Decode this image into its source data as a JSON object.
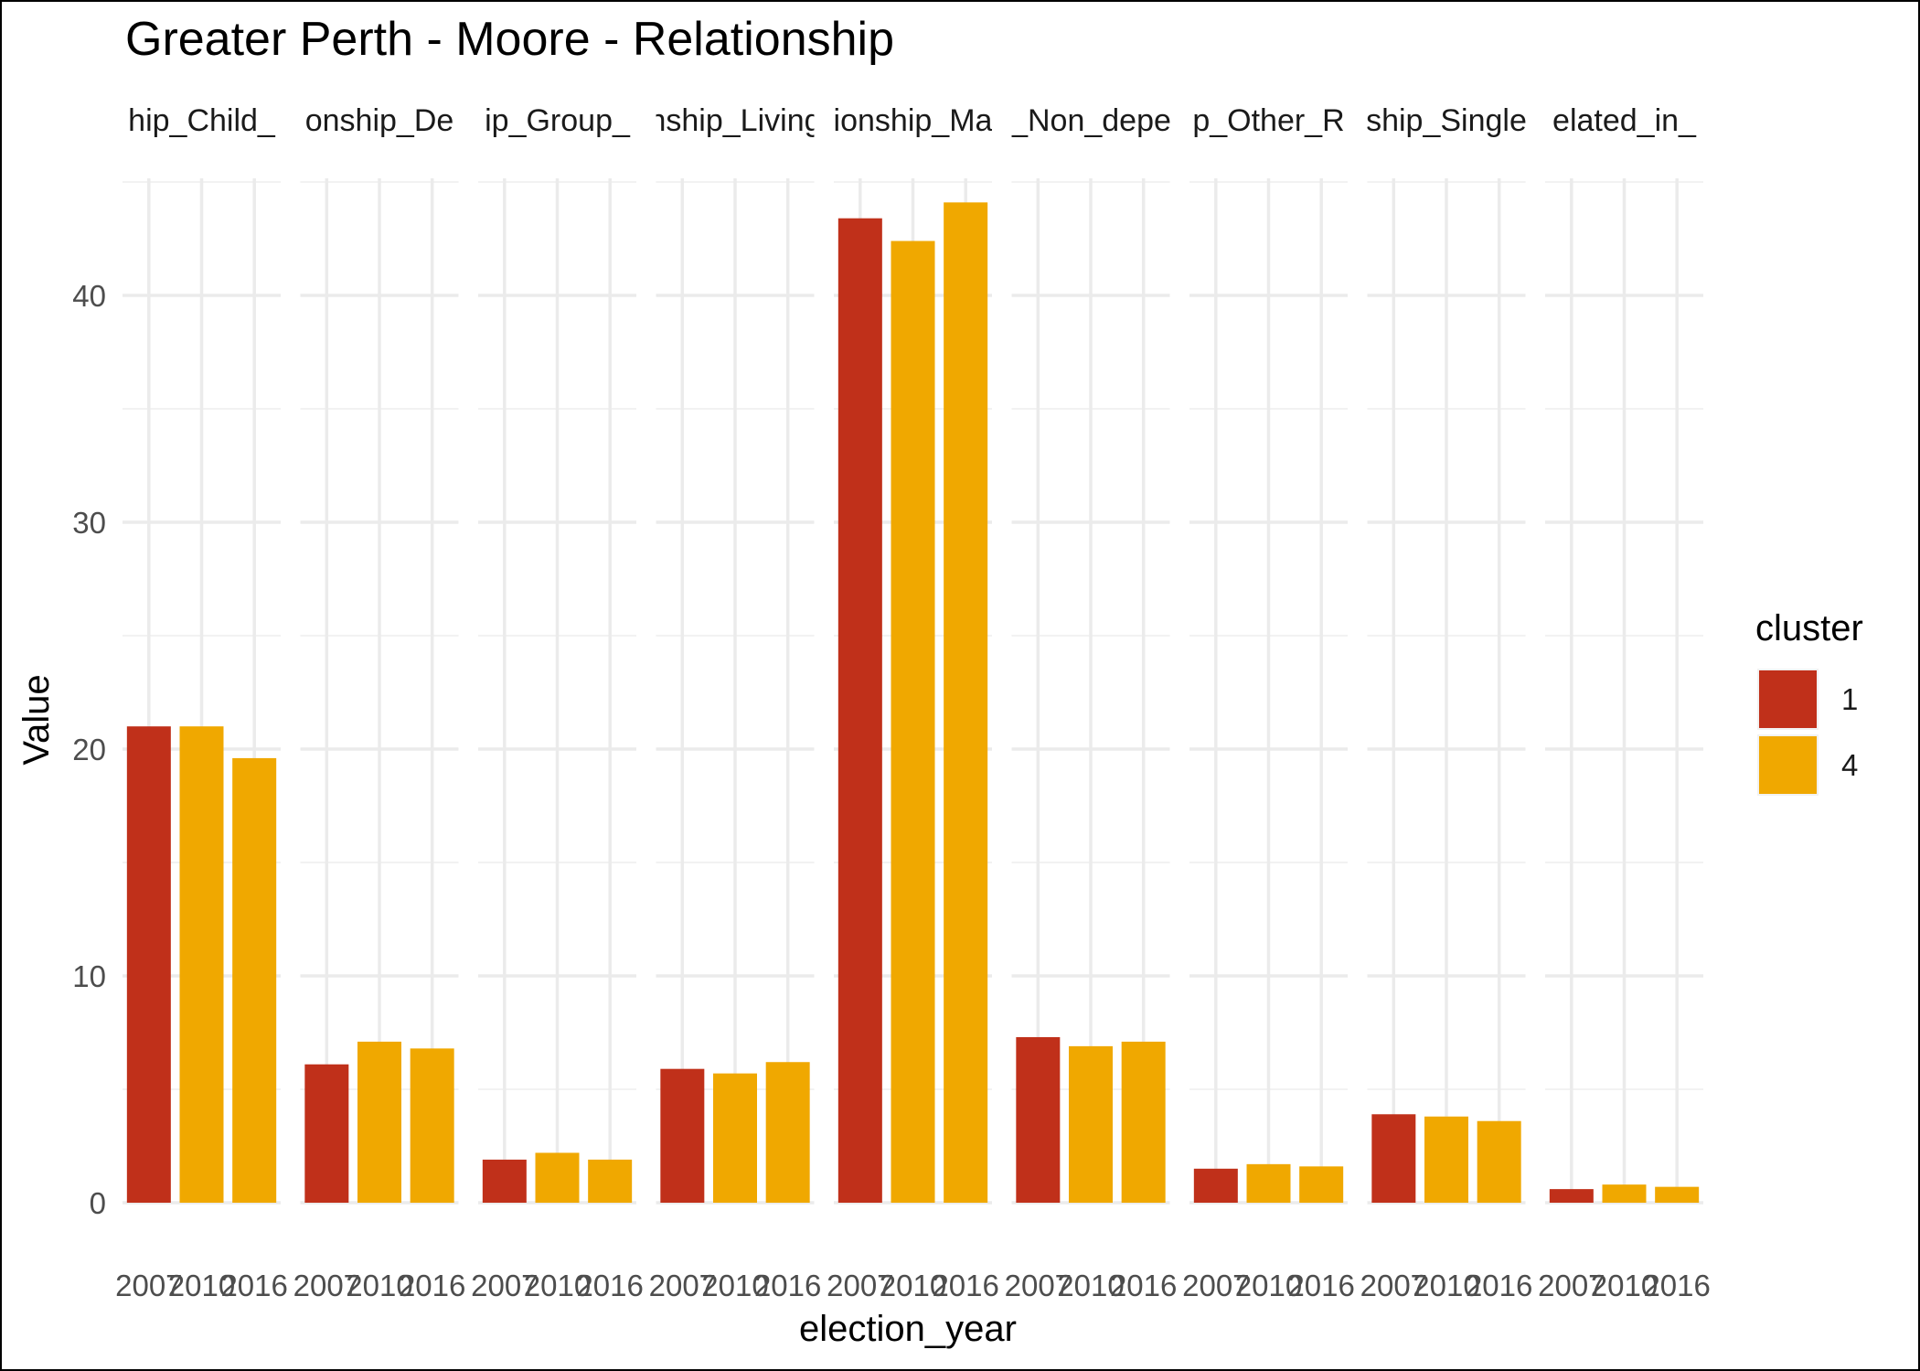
{
  "chart_data": {
    "type": "bar",
    "title": "Greater Perth - Moore - Relationship",
    "xlabel": "election_year",
    "ylabel": "Value",
    "ylim": [
      0,
      45.5
    ],
    "y_ticks": [
      0,
      10,
      20,
      30,
      40
    ],
    "grid": true,
    "legend": {
      "title": "cluster",
      "position": "right",
      "entries": [
        {
          "label": "1",
          "color": "#C0301A"
        },
        {
          "label": "4",
          "color": "#F0A800"
        }
      ]
    },
    "x_categories": [
      "2007",
      "2010",
      "2016"
    ],
    "facets": [
      {
        "label": "hip_Child_",
        "bars": [
          {
            "x": "2007",
            "cluster": "1",
            "value": 21.0
          },
          {
            "x": "2010",
            "cluster": "4",
            "value": 21.0
          },
          {
            "x": "2016",
            "cluster": "4",
            "value": 19.6
          }
        ]
      },
      {
        "label": "onship_De",
        "bars": [
          {
            "x": "2007",
            "cluster": "1",
            "value": 6.1
          },
          {
            "x": "2010",
            "cluster": "4",
            "value": 7.1
          },
          {
            "x": "2016",
            "cluster": "4",
            "value": 6.8
          }
        ]
      },
      {
        "label": "ip_Group_",
        "bars": [
          {
            "x": "2007",
            "cluster": "1",
            "value": 1.9
          },
          {
            "x": "2010",
            "cluster": "4",
            "value": 2.2
          },
          {
            "x": "2016",
            "cluster": "4",
            "value": 1.9
          }
        ]
      },
      {
        "label": "nship_Living",
        "bars": [
          {
            "x": "2007",
            "cluster": "1",
            "value": 5.9
          },
          {
            "x": "2010",
            "cluster": "4",
            "value": 5.7
          },
          {
            "x": "2016",
            "cluster": "4",
            "value": 6.2
          }
        ]
      },
      {
        "label": "ionship_Ma",
        "bars": [
          {
            "x": "2007",
            "cluster": "1",
            "value": 43.4
          },
          {
            "x": "2010",
            "cluster": "4",
            "value": 42.4
          },
          {
            "x": "2016",
            "cluster": "4",
            "value": 44.1
          }
        ]
      },
      {
        "label": "_Non_depe",
        "bars": [
          {
            "x": "2007",
            "cluster": "1",
            "value": 7.3
          },
          {
            "x": "2010",
            "cluster": "4",
            "value": 6.9
          },
          {
            "x": "2016",
            "cluster": "4",
            "value": 7.1
          }
        ]
      },
      {
        "label": "p_Other_R",
        "bars": [
          {
            "x": "2007",
            "cluster": "1",
            "value": 1.5
          },
          {
            "x": "2010",
            "cluster": "4",
            "value": 1.7
          },
          {
            "x": "2016",
            "cluster": "4",
            "value": 1.6
          }
        ]
      },
      {
        "label": "ship_Single",
        "bars": [
          {
            "x": "2007",
            "cluster": "1",
            "value": 3.9
          },
          {
            "x": "2010",
            "cluster": "4",
            "value": 3.8
          },
          {
            "x": "2016",
            "cluster": "4",
            "value": 3.6
          }
        ]
      },
      {
        "label": "elated_in_",
        "bars": [
          {
            "x": "2007",
            "cluster": "1",
            "value": 0.6
          },
          {
            "x": "2010",
            "cluster": "4",
            "value": 0.8
          },
          {
            "x": "2016",
            "cluster": "4",
            "value": 0.7
          }
        ]
      }
    ]
  }
}
